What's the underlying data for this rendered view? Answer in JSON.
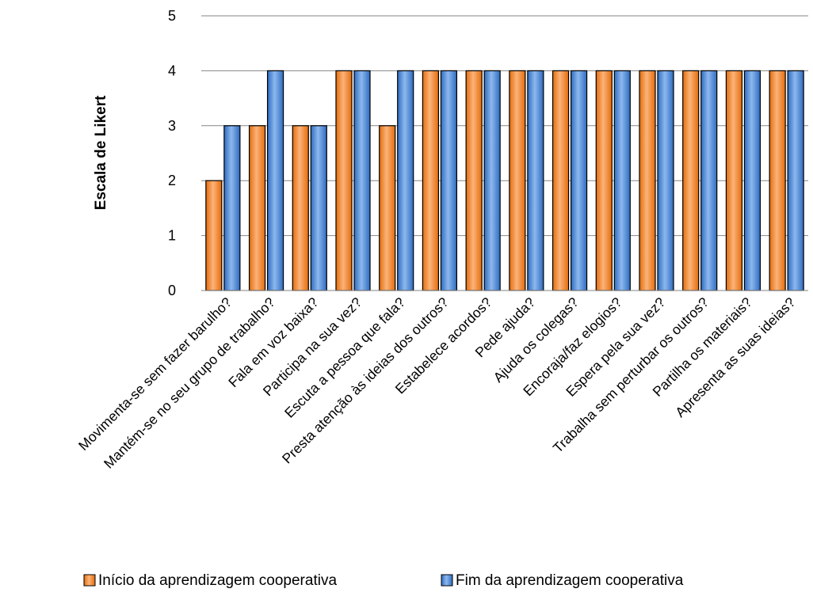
{
  "chart_data": {
    "type": "bar",
    "title": "",
    "xlabel": "",
    "ylabel": "Escala de Likert",
    "ylim": [
      0,
      5
    ],
    "yticks": [
      0,
      1,
      2,
      3,
      4,
      5
    ],
    "grid": true,
    "legend_position": "bottom",
    "categories": [
      "Movimenta-se sem fazer barulho?",
      "Mantém-se no seu grupo de trabalho?",
      "Fala em voz baixa?",
      "Participa na sua vez?",
      "Escuta a pessoa que fala?",
      "Presta atenção às ideias dos outros?",
      "Estabelece acordos?",
      "Pede ajuda?",
      "Ajuda os colegas?",
      "Encoraja/faz elogios?",
      "Espera pela sua vez?",
      "Trabalha sem perturbar os outros?",
      "Partilha os materiais?",
      "Apresenta as suas ideias?"
    ],
    "series": [
      {
        "name": "Início da aprendizagem cooperativa",
        "color": "#F79646",
        "values": [
          2,
          3,
          3,
          4,
          3,
          4,
          4,
          4,
          4,
          4,
          4,
          4,
          4,
          4
        ]
      },
      {
        "name": "Fim da aprendizagem cooperativa",
        "color": "#4F81BD",
        "values": [
          3,
          4,
          3,
          4,
          4,
          4,
          4,
          4,
          4,
          4,
          4,
          4,
          4,
          4
        ]
      }
    ]
  }
}
